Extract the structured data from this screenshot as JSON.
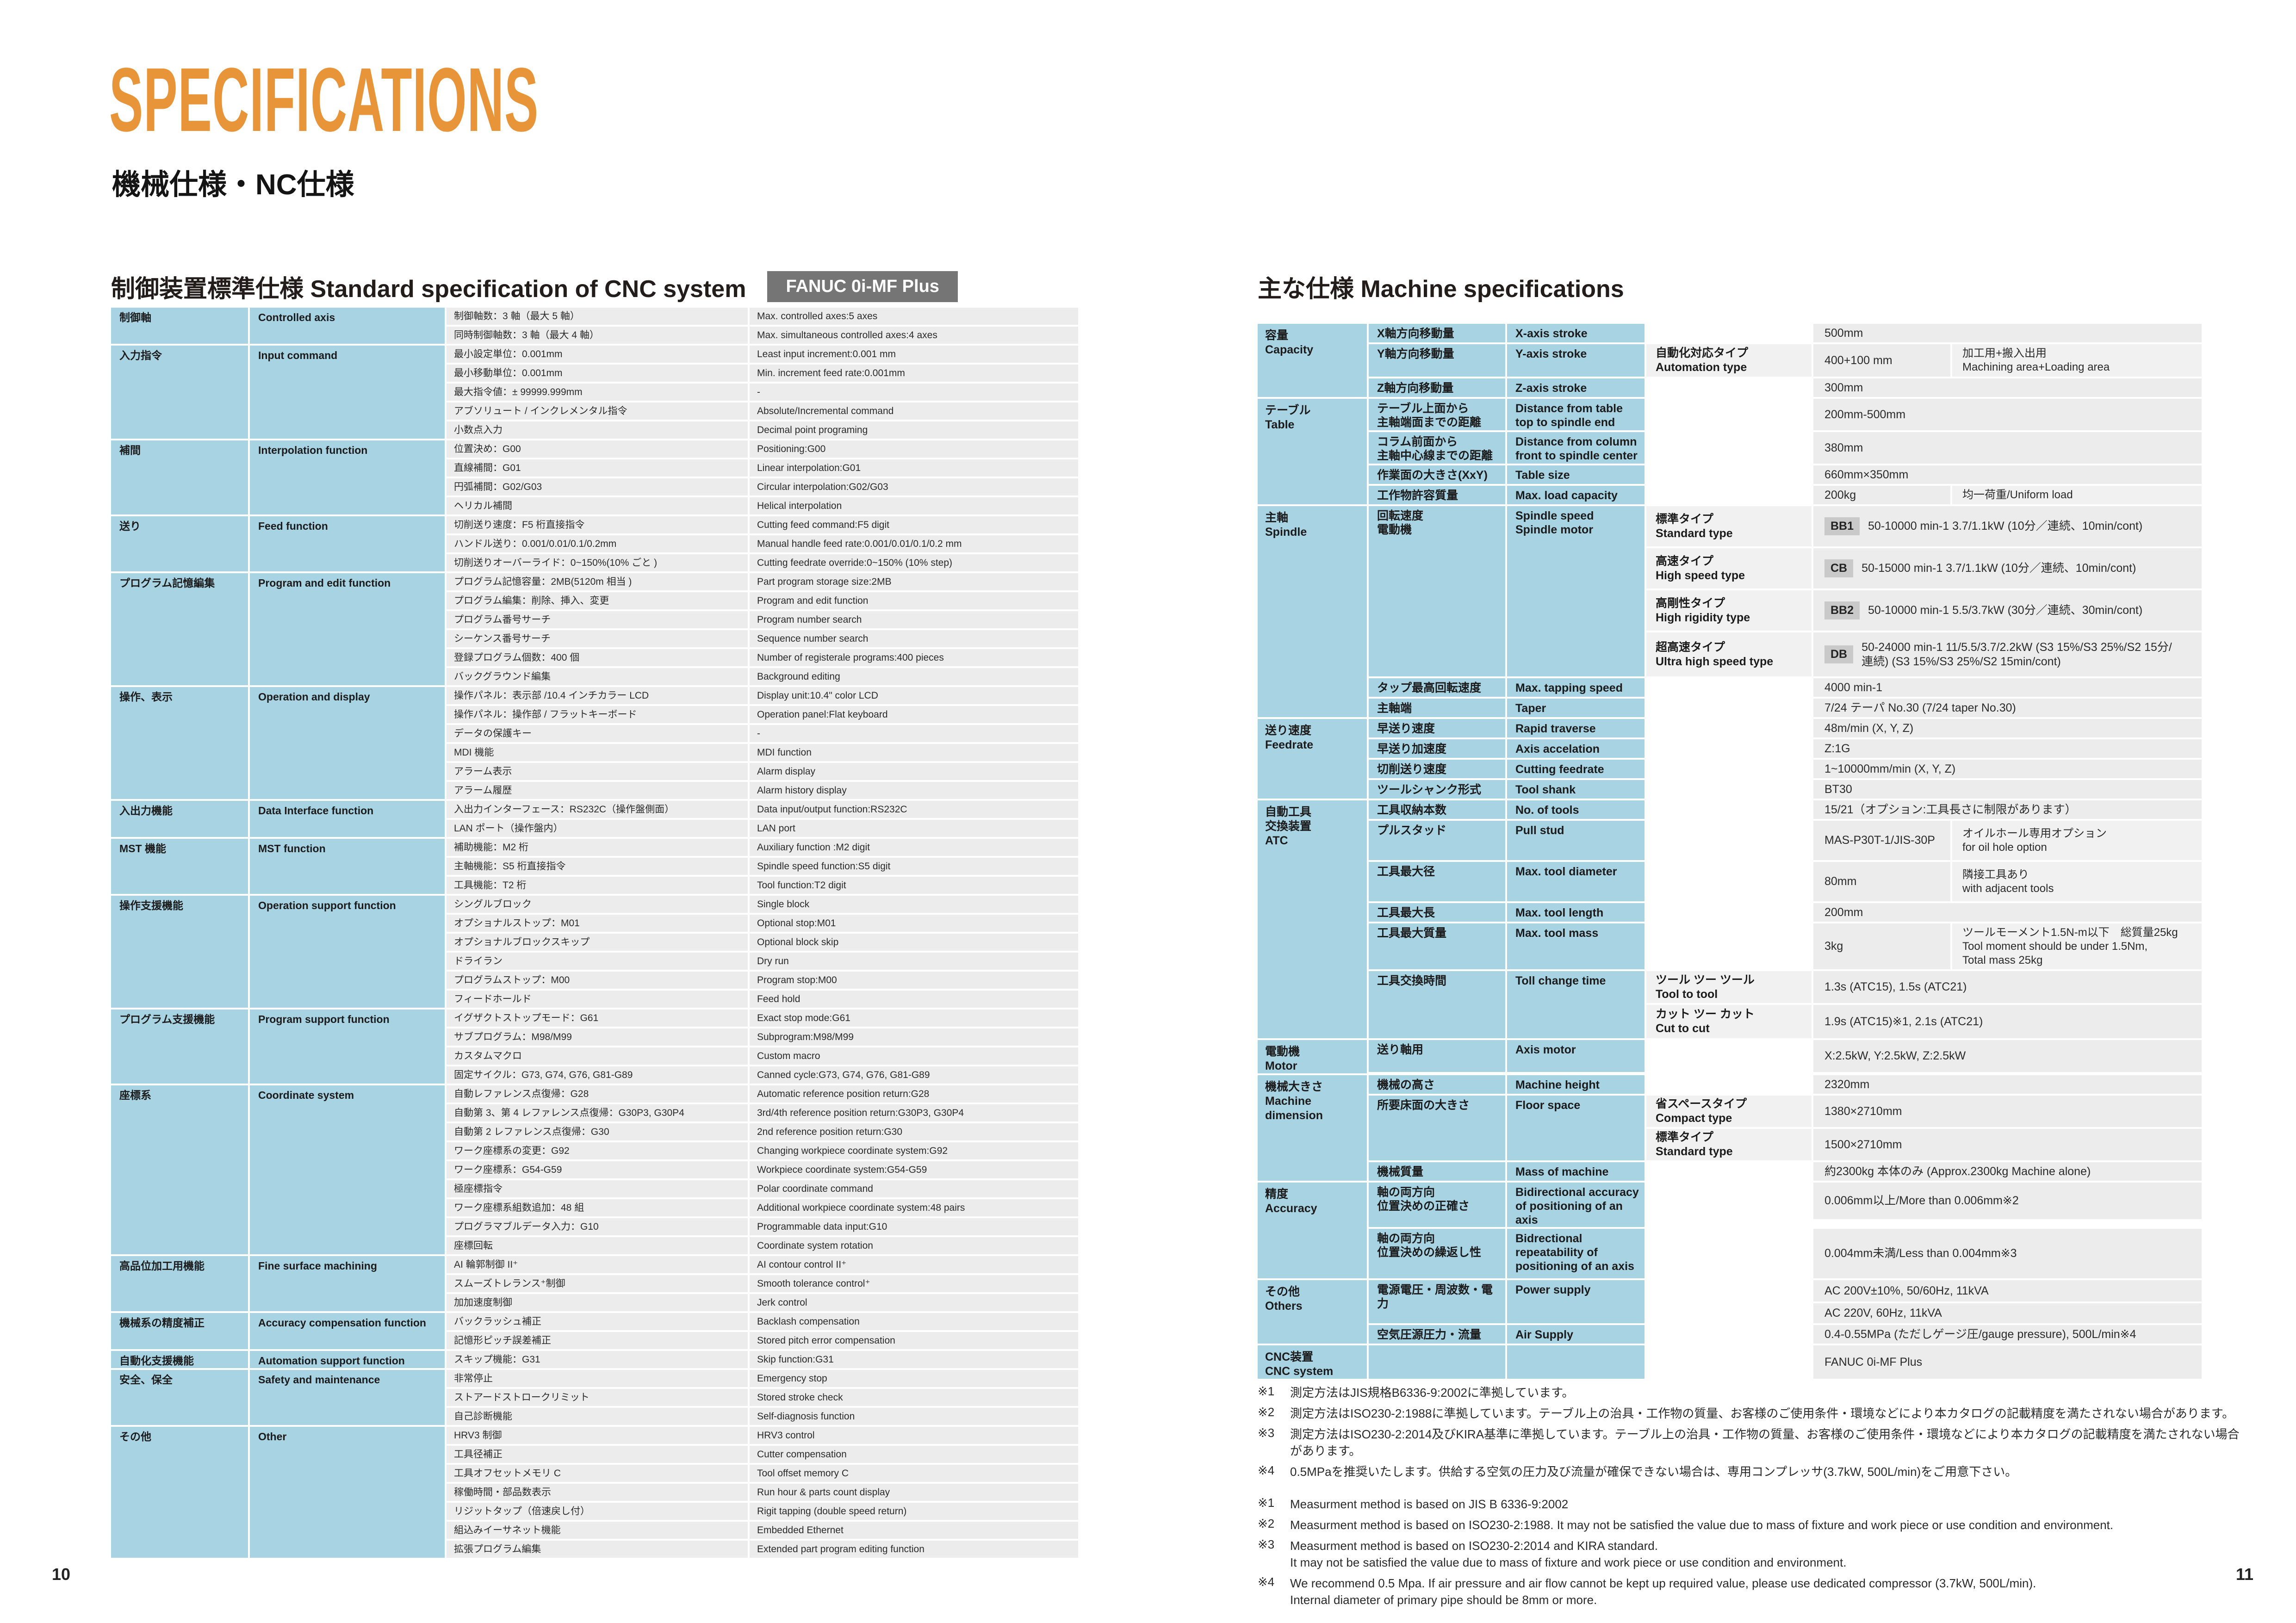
{
  "page": {
    "title": "SPECIFICATIONS",
    "subtitle": "機械仕様・NC仕様",
    "page_number_left": "10",
    "page_number_right": "11",
    "colors": {
      "accent_orange": "#E8953A",
      "table_blue": "#A8D3E3",
      "row_gray": "#ECECEC",
      "note_gray": "#F1F1F1",
      "badge_dark_gray": "#757575",
      "type_badge_gray": "#C9C9C9"
    }
  },
  "cnc_table": {
    "title": "制御装置標準仕様 Standard specification of CNC system",
    "badge": "FANUC  0i-MF Plus",
    "groups": [
      {
        "jp": "制御軸",
        "en": "Controlled axis",
        "rows": [
          {
            "jp": "制御軸数：3 軸（最大 5 軸）",
            "en": "Max. controlled axes:5 axes"
          },
          {
            "jp": "同時制御軸数：3 軸（最大 4 軸）",
            "en": "Max. simultaneous controlled axes:4 axes"
          }
        ]
      },
      {
        "jp": "入力指令",
        "en": "Input command",
        "rows": [
          {
            "jp": "最小設定単位：0.001mm",
            "en": "Least input increment:0.001 mm"
          },
          {
            "jp": "最小移動単位：0.001mm",
            "en": "Min. increment feed rate:0.001mm"
          },
          {
            "jp": "最大指令値：± 99999.999mm",
            "en": "-"
          },
          {
            "jp": "アブソリュート / インクレメンタル指令",
            "en": "Absolute/Incremental command"
          },
          {
            "jp": "小数点入力",
            "en": "Decimal point programing"
          }
        ]
      },
      {
        "jp": "補間",
        "en": "Interpolation function",
        "rows": [
          {
            "jp": "位置決め：G00",
            "en": "Positioning:G00"
          },
          {
            "jp": "直線補間：G01",
            "en": "Linear interpolation:G01"
          },
          {
            "jp": "円弧補間：G02/G03",
            "en": "Circular interpolation:G02/G03"
          },
          {
            "jp": "ヘリカル補間",
            "en": "Helical interpolation"
          }
        ]
      },
      {
        "jp": "送り",
        "en": "Feed function",
        "rows": [
          {
            "jp": "切削送り速度：F5 桁直接指令",
            "en": "Cutting feed command:F5 digit"
          },
          {
            "jp": "ハンドル送り：0.001/0.01/0.1/0.2mm",
            "en": "Manual handle feed rate:0.001/0.01/0.1/0.2 mm"
          },
          {
            "jp": "切削送りオーバーライド：0~150%(10% ごと )",
            "en": "Cutting feedrate override:0~150% (10% step)"
          }
        ]
      },
      {
        "jp": "プログラム記憶編集",
        "en": "Program and edit function",
        "rows": [
          {
            "jp": "プログラム記憶容量：2MB(5120m 相当 )",
            "en": "Part program storage size:2MB"
          },
          {
            "jp": "プログラム編集：削除、挿入、変更",
            "en": "Program and edit function"
          },
          {
            "jp": "プログラム番号サーチ",
            "en": "Program number search"
          },
          {
            "jp": "シーケンス番号サーチ",
            "en": "Sequence number search"
          },
          {
            "jp": "登録プログラム個数：400 個",
            "en": "Number of registerale programs:400 pieces"
          },
          {
            "jp": "バックグラウンド編集",
            "en": "Background editing"
          }
        ]
      },
      {
        "jp": "操作、表示",
        "en": "Operation and display",
        "rows": [
          {
            "jp": "操作パネル：表示部 /10.4 インチカラー LCD",
            "en": "Display unit:10.4\" color LCD"
          },
          {
            "jp": "操作パネル：操作部 / フラットキーボード",
            "en": "Operation panel:Flat keyboard"
          },
          {
            "jp": "データの保護キー",
            "en": "-"
          },
          {
            "jp": "MDI 機能",
            "en": "MDI function"
          },
          {
            "jp": "アラーム表示",
            "en": "Alarm display"
          },
          {
            "jp": "アラーム履歴",
            "en": "Alarm history display"
          }
        ]
      },
      {
        "jp": "入出力機能",
        "en": "Data Interface function",
        "rows": [
          {
            "jp": "入出力インターフェース：RS232C（操作盤側面）",
            "en": "Data input/output function:RS232C"
          },
          {
            "jp": "LAN ポート（操作盤内）",
            "en": "LAN port"
          }
        ]
      },
      {
        "jp": "MST 機能",
        "en": "MST function",
        "rows": [
          {
            "jp": "補助機能：M2 桁",
            "en": "Auxiliary function :M2 digit"
          },
          {
            "jp": "主軸機能：S5 桁直接指令",
            "en": "Spindle speed function:S5 digit"
          },
          {
            "jp": "工具機能：T2 桁",
            "en": "Tool function:T2 digit"
          }
        ]
      },
      {
        "jp": "操作支援機能",
        "en": "Operation support function",
        "rows": [
          {
            "jp": "シングルブロック",
            "en": "Single block"
          },
          {
            "jp": "オプショナルストップ：M01",
            "en": "Optional stop:M01"
          },
          {
            "jp": "オプショナルブロックスキップ",
            "en": "Optional block skip"
          },
          {
            "jp": "ドライラン",
            "en": "Dry run"
          },
          {
            "jp": "プログラムストップ：M00",
            "en": "Program stop:M00"
          },
          {
            "jp": "フィードホールド",
            "en": "Feed hold"
          }
        ]
      },
      {
        "jp": "プログラム支援機能",
        "en": "Program support function",
        "rows": [
          {
            "jp": "イグザクトストップモード：G61",
            "en": "Exact stop mode:G61"
          },
          {
            "jp": "サブプログラム：M98/M99",
            "en": "Subprogram:M98/M99"
          },
          {
            "jp": "カスタムマクロ",
            "en": "Custom macro"
          },
          {
            "jp": "固定サイクル：G73, G74, G76, G81-G89",
            "en": "Canned cycle:G73, G74, G76, G81-G89"
          }
        ]
      },
      {
        "jp": "座標系",
        "en": "Coordinate system",
        "rows": [
          {
            "jp": "自動レファレンス点復帰：G28",
            "en": "Automatic reference position return:G28"
          },
          {
            "jp": "自動第 3、第 4 レファレンス点復帰：G30P3, G30P4",
            "en": "3rd/4th reference position return:G30P3, G30P4"
          },
          {
            "jp": "自動第 2 レファレンス点復帰：G30",
            "en": "2nd reference position return:G30"
          },
          {
            "jp": "ワーク座標系の変更：G92",
            "en": "Changing workpiece coordinate system:G92"
          },
          {
            "jp": "ワーク座標系：G54-G59",
            "en": "Workpiece coordinate system:G54-G59"
          },
          {
            "jp": "極座標指令",
            "en": "Polar coordinate command"
          },
          {
            "jp": "ワーク座標系組数追加：48 組",
            "en": "Additional workpiece coordinate system:48 pairs"
          },
          {
            "jp": "プログラマブルデータ入力：G10",
            "en": "Programmable data input:G10"
          },
          {
            "jp": "座標回転",
            "en": "Coordinate system rotation"
          }
        ]
      },
      {
        "jp": "高品位加工用機能",
        "en": "Fine surface machining",
        "rows": [
          {
            "jp": "AI 輪郭制御 II⁺",
            "en": "AI contour control II⁺"
          },
          {
            "jp": "スムーズトレランス⁺制御",
            "en": "Smooth tolerance control⁺"
          },
          {
            "jp": "加加速度制御",
            "en": "Jerk control"
          }
        ]
      },
      {
        "jp": "機械系の精度補正",
        "en": "Accuracy compensation function",
        "rows": [
          {
            "jp": "バックラッシュ補正",
            "en": "Backlash compensation"
          },
          {
            "jp": "記憶形ピッチ誤差補正",
            "en": "Stored pitch error compensation"
          }
        ]
      },
      {
        "jp": "自動化支援機能",
        "en": "Automation support function",
        "rows": [
          {
            "jp": "スキップ機能：G31",
            "en": "Skip function:G31"
          }
        ]
      },
      {
        "jp": "安全、保全",
        "en": "Safety and maintenance",
        "rows": [
          {
            "jp": "非常停止",
            "en": "Emergency stop"
          },
          {
            "jp": "ストアードストロークリミット",
            "en": "Stored stroke check"
          },
          {
            "jp": "自己診断機能",
            "en": "Self-diagnosis function"
          }
        ]
      },
      {
        "jp": "その他",
        "en": "Other",
        "rows": [
          {
            "jp": "HRV3 制御",
            "en": "HRV3 control"
          },
          {
            "jp": "工具径補正",
            "en": "Cutter compensation"
          },
          {
            "jp": "工具オフセットメモリ C",
            "en": "Tool offset memory C"
          },
          {
            "jp": "稼働時間・部品数表示",
            "en": "Run hour & parts count display"
          },
          {
            "jp": "リジットタップ（倍速戻し付）",
            "en": "Rigit tapping (double speed return)"
          },
          {
            "jp": "組込みイーサネット機能",
            "en": "Embedded Ethernet"
          },
          {
            "jp": "拡張プログラム編集",
            "en": "Extended part program editing function"
          }
        ]
      }
    ]
  },
  "machine_table": {
    "title": "主な仕様 Machine specifications",
    "groups": [
      {
        "jp": "容量",
        "en": "Capacity",
        "rows": [
          {
            "jp": "X軸方向移動量",
            "en": "X-axis stroke",
            "value": "500mm",
            "h": 40
          },
          {
            "jp": "Y軸方向移動量",
            "en": "Y-axis stroke",
            "mod": "自動化対応タイプ\nAutomation type",
            "value": "400+100 mm",
            "note": "加工用+搬入出用\nMachining area+Loading area",
            "h": 70
          },
          {
            "jp": "Z軸方向移動量",
            "en": "Z-axis stroke",
            "value": "300mm",
            "h": 40
          }
        ]
      },
      {
        "jp": "テーブル",
        "en": "Table",
        "rows": [
          {
            "jp": "テーブル上面から\n主軸端面までの距離",
            "en": "Distance from table\ntop to spindle end",
            "value": "200mm-500mm",
            "h": 68
          },
          {
            "jp": "コラム前面から\n主軸中心線までの距離",
            "en": "Distance from column\nfront to spindle center",
            "value": "380mm",
            "h": 68
          },
          {
            "jp": "作業面の大きさ(XxY)",
            "en": "Table size",
            "value": "660mm×350mm",
            "h": 40
          },
          {
            "jp": "工作物許容質量",
            "en": "Max. load capacity",
            "value": "200kg",
            "note": "均一荷重/Uniform load",
            "h": 40
          }
        ]
      },
      {
        "jp": "主軸",
        "en": "Spindle",
        "rows": [
          {
            "jp": "回転速度\n電動機",
            "en": "Spindle speed\nSpindle motor",
            "sub": [
              {
                "mod": "標準タイプ\nStandard type",
                "badge": "BB1",
                "value": "50-10000 min-1 3.7/1.1kW (10分／連続、10min/cont)",
                "h": 87
              },
              {
                "mod": "高速タイプ\nHigh speed type",
                "badge": "CB",
                "value": "50-15000 min-1 3.7/1.1kW (10分／連続、10min/cont)",
                "h": 87
              },
              {
                "mod": "高剛性タイプ\nHigh rigidity type",
                "badge": "BB2",
                "value": "50-10000 min-1 5.5/3.7kW (30分／連続、30min/cont)",
                "h": 87
              },
              {
                "mod": "超高速タイプ\nUltra high speed type",
                "badge": "DB",
                "value": "50-24000 min-1 11/5.5/3.7/2.2kW (S3 15%/S3 25%/S2 15分/\n連続) (S3 15%/S3 25%/S2 15min/cont)",
                "h": 95
              }
            ]
          },
          {
            "jp": "タップ最高回転速度",
            "en": "Max. tapping speed",
            "value": "4000 min-1",
            "h": 40
          },
          {
            "jp": "主軸端",
            "en": "Taper",
            "value": "7/24 テーパ No.30 (7/24 taper No.30)",
            "h": 40
          }
        ]
      },
      {
        "jp": "送り速度",
        "en": "Feedrate",
        "rows": [
          {
            "jp": "早送り速度",
            "en": "Rapid traverse",
            "value": "48m/min (X, Y, Z)",
            "h": 40
          },
          {
            "jp": "早送り加速度",
            "en": "Axis accelation",
            "value": "Z:1G",
            "h": 40
          },
          {
            "jp": "切削送り速度",
            "en": "Cutting feedrate",
            "value": "1~10000mm/min (X, Y, Z)",
            "h": 40
          },
          {
            "jp": "ツールシャンク形式",
            "en": "Tool shank",
            "value": "BT30",
            "h": 40
          }
        ]
      },
      {
        "jp": "自動工具\n交換装置",
        "en": "ATC",
        "rows": [
          {
            "jp": "工具収納本数",
            "en": "No. of tools",
            "value": "15/21（オプション:工具長さに制限があります）",
            "h": 40
          },
          {
            "jp": "プルスタッド",
            "en": "Pull stud",
            "value": "MAS-P30T-1/JIS-30P",
            "note": "オイルホール専用オプション\nfor oil hole option",
            "h": 85
          },
          {
            "jp": "工具最大径",
            "en": "Max. tool diameter",
            "value": "80mm",
            "note": "隣接工具あり\nwith adjacent tools",
            "h": 85
          },
          {
            "jp": "工具最大長",
            "en": "Max. tool length",
            "value": "200mm",
            "h": 40
          },
          {
            "jp": "工具最大質量",
            "en": "Max. tool mass",
            "value": "3kg",
            "note": "ツールモーメント1.5N-m以下　総質量25kg\nTool moment should be under 1.5Nm,\nTotal mass 25kg",
            "h": 99
          },
          {
            "jp": "工具交換時間",
            "en": "Toll change time",
            "sub": [
              {
                "mod": "ツール ツー ツール\nTool to tool",
                "value": "1.3s (ATC15), 1.5s (ATC21)",
                "h": 69
              },
              {
                "mod": "カット ツー カット\nCut to cut",
                "value": "1.9s (ATC15)※1, 2.1s (ATC21)",
                "h": 72
              }
            ]
          }
        ]
      },
      {
        "jp": "電動機",
        "en": "Motor",
        "rows": [
          {
            "jp": "送り軸用",
            "en": "Axis motor",
            "value": "X:2.5kW, Y:2.5kW, Z:2.5kW",
            "h": 69
          }
        ]
      },
      {
        "jp": "機械大きさ",
        "en": "Machine dimension",
        "rows": [
          {
            "jp": "機械の高さ",
            "en": "Machine height",
            "value": "2320mm",
            "h": 40
          },
          {
            "jp": "所要床面の大きさ",
            "en": "Floor space",
            "sub": [
              {
                "mod": "省スペースタイプ\nCompact type",
                "value": "1380×2710mm",
                "h": 68
              },
              {
                "mod": "標準タイプ\nStandard type",
                "value": "1500×2710mm",
                "h": 68
              }
            ]
          },
          {
            "jp": "機械質量",
            "en": "Mass of machine",
            "value": "約2300kg 本体のみ (Approx.2300kg Machine alone)",
            "h": 40
          }
        ]
      },
      {
        "jp": "精度",
        "en": "Accuracy",
        "rows": [
          {
            "jp": "軸の両方向\n位置決めの正確さ",
            "en": "Bidirectional accuracy\nof positioning of an axis",
            "value": "0.006mm以上/More than 0.006mm※2",
            "h": 79
          },
          {
            "jp": "軸の両方向\n位置決めの繰返し性",
            "en": "Bidrectional\nrepeatability of\npositioning of an axis",
            "value": "0.004mm未満/Less than 0.004mm※3",
            "h": 107
          }
        ]
      },
      {
        "jp": "その他",
        "en": "Others",
        "rows": [
          {
            "jp": "電源電圧・周波数・電力",
            "en": "Power supply",
            "sub": [
              {
                "value": "AC 200V±10%, 50/60Hz, 11kVA",
                "h": 46
              },
              {
                "value": "AC 220V, 60Hz, 11kVA",
                "h": 43
              }
            ]
          },
          {
            "jp": "空気圧源圧力・流量",
            "en": "Air Supply",
            "value": "0.4-0.55MPa (ただしゲージ圧/gauge pressure), 500L/min※4",
            "h": 40
          }
        ]
      },
      {
        "jp": "CNC装置",
        "en": "CNC system",
        "rows": [
          {
            "jp": "",
            "en": "",
            "value": "FANUC 0i-MF Plus",
            "h": 72
          }
        ]
      }
    ]
  },
  "footnotes": {
    "jp": [
      {
        "mark": "※1",
        "text": "測定方法はJIS規格B6336-9:2002に準拠しています。"
      },
      {
        "mark": "※2",
        "text": "測定方法はISO230-2:1988に準拠しています。テーブル上の治具・工作物の質量、お客様のご使用条件・環境などにより本カタログの記載精度を満たされない場合があります。"
      },
      {
        "mark": "※3",
        "text": "測定方法はISO230-2:2014及びKIRA基準に準拠しています。テーブル上の治具・工作物の質量、お客様のご使用条件・環境などにより本カタログの記載精度を満たされない場合があります。"
      },
      {
        "mark": "※4",
        "text": "0.5MPaを推奨いたします。供給する空気の圧力及び流量が確保できない場合は、専用コンプレッサ(3.7kW, 500L/min)をご用意下さい。"
      }
    ],
    "en": [
      {
        "mark": "※1",
        "text": "Measurment method is based on JIS B 6336-9:2002"
      },
      {
        "mark": "※2",
        "text": "Measurment method is based on ISO230-2:1988. It may not be satisfied the value due to mass of fixture and work piece or use condition and environment."
      },
      {
        "mark": "※3",
        "text": "Measurment method is based on ISO230-2:2014 and KIRA standard.\nIt may not be satisfied the value due to mass of fixture and work piece or use condition and environment."
      },
      {
        "mark": "※4",
        "text": "We recommend 0.5 Mpa. If air pressure and air flow cannot be kept up required value, please use dedicated compressor (3.7kW, 500L/min).\nInternal diameter of primary pipe should be 8mm or more."
      }
    ]
  }
}
